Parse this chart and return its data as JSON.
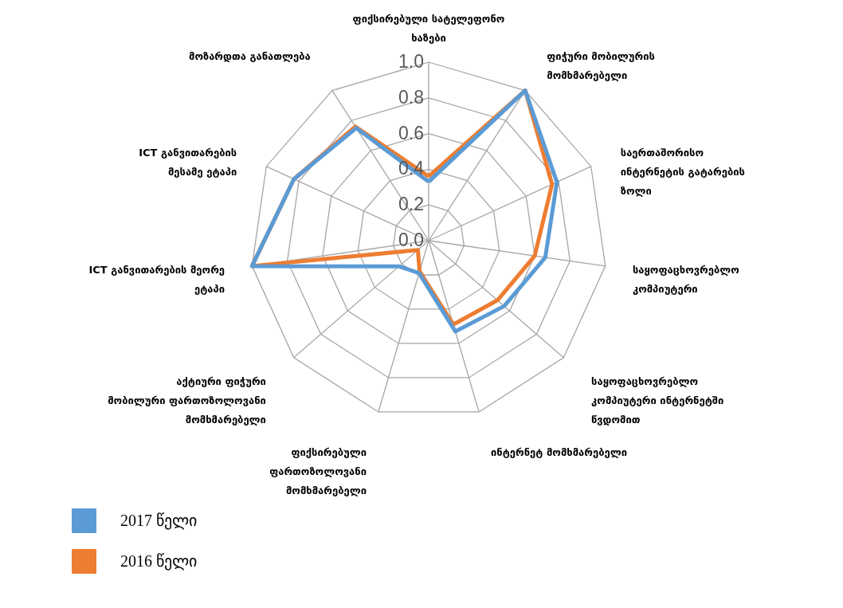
{
  "chart_data": {
    "type": "radar",
    "categories": [
      "ფიქსირებული სატელეფონო ხაზები",
      "ფიჭური მობილურის მომხმარებელი",
      "საერთაშორისო ინტერნეტის გატარების ზოლი",
      "საყოფაცხოვრებლო კომპიუტერი",
      "საყოფაცხოვრებლო კომპიუტერი ინტერნეტში წვდომით",
      "ინტერნეტ მომხმარებელი",
      "ფიქსირებული ფართოზოლოვანი მომხმარებელი",
      "აქტიური ფიჭური მობილური ფართოზოლოვანი მომხმარებელი",
      "ICT განვითარების მეორე ეტაპი",
      "ICT განვითარების მესამე ეტაპი",
      "მოზარდთა განათლება"
    ],
    "series": [
      {
        "name": "2017 წელი",
        "color": "#5b9bd5",
        "values": [
          0.33,
          1.0,
          0.79,
          0.66,
          0.56,
          0.53,
          0.19,
          0.22,
          1.0,
          0.83,
          0.75
        ]
      },
      {
        "name": "2016 წელი",
        "color": "#ed7d31",
        "values": [
          0.36,
          1.0,
          0.76,
          0.6,
          0.51,
          0.49,
          0.18,
          0.08,
          1.0,
          0.83,
          0.76
        ]
      }
    ],
    "ylim": [
      0,
      1
    ],
    "yticks": [
      {
        "value": 0,
        "label": "0.0"
      },
      0.2,
      0.4,
      0.6,
      0.8,
      {
        "value": 1,
        "label": "1.0"
      }
    ],
    "grid": true,
    "legend": "bottom left",
    "line_style": "solid"
  }
}
